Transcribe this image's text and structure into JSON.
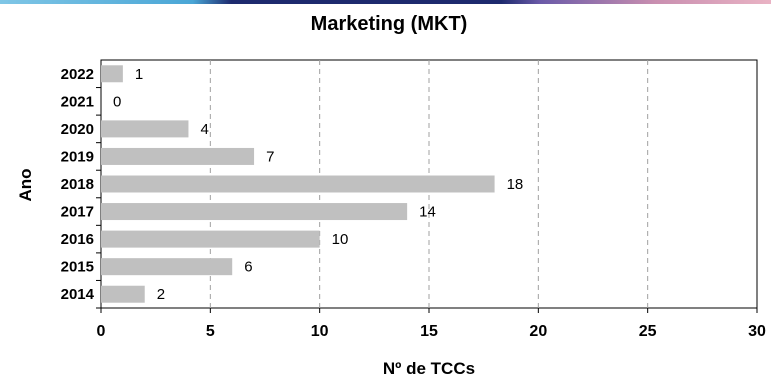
{
  "chart_data": {
    "type": "bar",
    "orientation": "horizontal",
    "title": "Marketing (MKT)",
    "xlabel": "Nº de TCCs",
    "ylabel": "Ano",
    "categories": [
      "2014",
      "2015",
      "2016",
      "2017",
      "2018",
      "2019",
      "2020",
      "2021",
      "2022"
    ],
    "values": [
      2,
      6,
      10,
      14,
      18,
      7,
      4,
      0,
      1
    ],
    "xlim": [
      0,
      30
    ],
    "xticks": [
      "0",
      "5",
      "10",
      "15",
      "20",
      "25",
      "30"
    ],
    "grid": "vertical dashed",
    "bar_color": "#c0c0c0"
  }
}
